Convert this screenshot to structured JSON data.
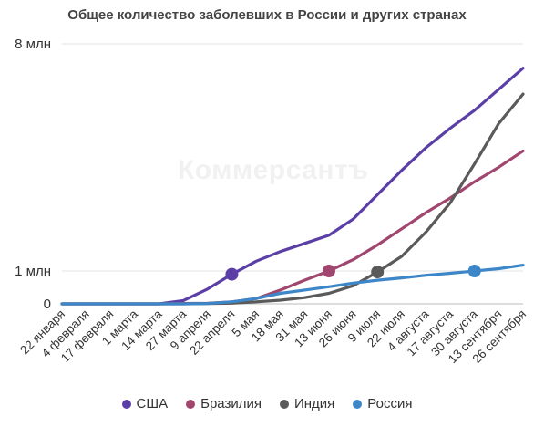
{
  "chart_data": {
    "type": "line",
    "title": "Общее количество заболевших в России и других странах",
    "watermark": "Коммерсантъ",
    "x": [
      "22 января",
      "4 февраля",
      "17 февраля",
      "1 марта",
      "14 марта",
      "27 марта",
      "9 апреля",
      "22 апреля",
      "5 мая",
      "18 мая",
      "31 мая",
      "13 июня",
      "26 июня",
      "9 июля",
      "22 июля",
      "4 августа",
      "17 августа",
      "30 августа",
      "13 сентября",
      "26 сентября"
    ],
    "y_ticks": [
      {
        "value": 0,
        "label": "0"
      },
      {
        "value": 1000000,
        "label": "1 млн"
      },
      {
        "value": 8000000,
        "label": "8 млн"
      }
    ],
    "ylim": [
      0,
      8000000
    ],
    "y_scale": "nonlinear",
    "grid": true,
    "legend_position": "bottom",
    "series": [
      {
        "name": "США",
        "color": "#5b3fa6",
        "values": [
          0,
          0,
          0,
          0,
          0,
          0.1,
          0.45,
          0.9,
          1.3,
          1.6,
          1.85,
          2.1,
          2.6,
          3.35,
          4.1,
          4.8,
          5.4,
          5.95,
          6.6,
          7.25
        ],
        "marker_index": 7
      },
      {
        "name": "Бразилия",
        "color": "#a0466f",
        "values": [
          0,
          0,
          0,
          0,
          0,
          0.01,
          0.02,
          0.06,
          0.16,
          0.42,
          0.72,
          1.0,
          1.35,
          1.8,
          2.3,
          2.8,
          3.25,
          3.75,
          4.2,
          4.7
        ],
        "marker_index": 11
      },
      {
        "name": "Индия",
        "color": "#5a5a5a",
        "values": [
          0,
          0,
          0,
          0,
          0,
          0,
          0.01,
          0.02,
          0.06,
          0.11,
          0.19,
          0.32,
          0.55,
          0.97,
          1.45,
          2.2,
          3.1,
          4.3,
          5.55,
          6.45
        ],
        "marker_index": 13
      },
      {
        "name": "Россия",
        "color": "#3d87c9",
        "values": [
          0,
          0,
          0,
          0,
          0,
          0,
          0.01,
          0.06,
          0.16,
          0.32,
          0.42,
          0.52,
          0.63,
          0.72,
          0.79,
          0.87,
          0.93,
          1.0,
          1.07,
          1.18
        ],
        "marker_index": 17
      }
    ]
  }
}
